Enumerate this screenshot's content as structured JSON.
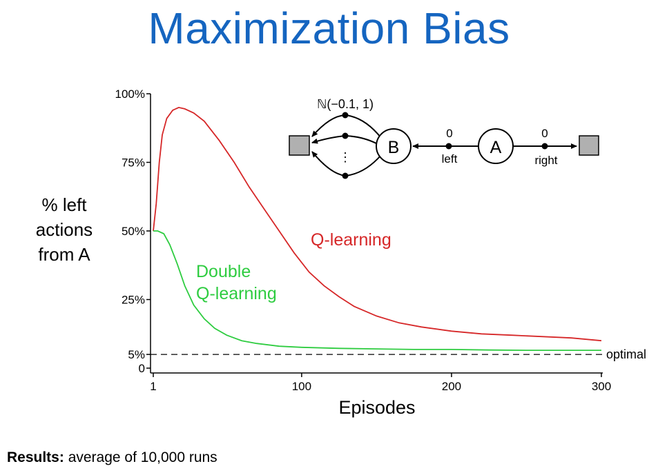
{
  "slide": {
    "title": "Maximization Bias",
    "footer_label": "Results:",
    "footer_text": " average of 10,000 runs"
  },
  "colors": {
    "title": "#1565c0",
    "q_learning": "#d62728",
    "double_q_learning": "#2ecc40",
    "optimal_line": "#000000"
  },
  "chart_data": {
    "type": "line",
    "xlabel": "Episodes",
    "ylabel": [
      "% left",
      "actions",
      "from A"
    ],
    "xlim": [
      1,
      300
    ],
    "ylim": [
      0,
      100
    ],
    "x_ticks": [
      {
        "value": 1,
        "label": "1"
      },
      {
        "value": 100,
        "label": "100"
      },
      {
        "value": 200,
        "label": "200"
      },
      {
        "value": 300,
        "label": "300"
      }
    ],
    "y_ticks": [
      {
        "value": 0,
        "label": "0"
      },
      {
        "value": 5,
        "label": "5%"
      },
      {
        "value": 25,
        "label": "25%"
      },
      {
        "value": 50,
        "label": "50%"
      },
      {
        "value": 75,
        "label": "75%"
      },
      {
        "value": 100,
        "label": "100%"
      }
    ],
    "series": [
      {
        "name": "Q-learning",
        "color": "#d62728",
        "points": [
          [
            1,
            50
          ],
          [
            3,
            60
          ],
          [
            5,
            75
          ],
          [
            7,
            85
          ],
          [
            10,
            91
          ],
          [
            14,
            94
          ],
          [
            18,
            95
          ],
          [
            22,
            94.5
          ],
          [
            28,
            93
          ],
          [
            35,
            90
          ],
          [
            45,
            83
          ],
          [
            55,
            75
          ],
          [
            65,
            66
          ],
          [
            75,
            58
          ],
          [
            85,
            50
          ],
          [
            95,
            42
          ],
          [
            105,
            35
          ],
          [
            115,
            30
          ],
          [
            125,
            26
          ],
          [
            135,
            22.5
          ],
          [
            150,
            19
          ],
          [
            165,
            16.5
          ],
          [
            180,
            15
          ],
          [
            200,
            13.5
          ],
          [
            220,
            12.5
          ],
          [
            240,
            12
          ],
          [
            260,
            11.5
          ],
          [
            280,
            11
          ],
          [
            300,
            10
          ]
        ]
      },
      {
        "name": "Double Q-learning",
        "color": "#2ecc40",
        "points": [
          [
            1,
            50
          ],
          [
            4,
            50
          ],
          [
            8,
            49
          ],
          [
            12,
            45
          ],
          [
            17,
            38
          ],
          [
            22,
            30
          ],
          [
            28,
            23
          ],
          [
            35,
            18
          ],
          [
            42,
            14.5
          ],
          [
            50,
            12
          ],
          [
            60,
            10
          ],
          [
            70,
            9
          ],
          [
            85,
            8
          ],
          [
            100,
            7.6
          ],
          [
            125,
            7.2
          ],
          [
            150,
            7
          ],
          [
            175,
            6.8
          ],
          [
            200,
            6.8
          ],
          [
            225,
            6.6
          ],
          [
            250,
            6.5
          ],
          [
            275,
            6.5
          ],
          [
            300,
            6.5
          ]
        ]
      }
    ],
    "reference_line": {
      "name": "optimal",
      "y": 5
    },
    "annotations": [
      {
        "text": "Q-learning",
        "color": "#d62728"
      },
      {
        "text": "Double",
        "color": "#2ecc40"
      },
      {
        "text": "Q-learning",
        "color": "#2ecc40"
      }
    ]
  },
  "diagram": {
    "distribution_label": "ℕ(−0.1, 1)",
    "state_b": "B",
    "state_a": "A",
    "left_reward": "0",
    "right_reward": "0",
    "left_action": "left",
    "right_action": "right",
    "ellipsis": "⋮"
  }
}
